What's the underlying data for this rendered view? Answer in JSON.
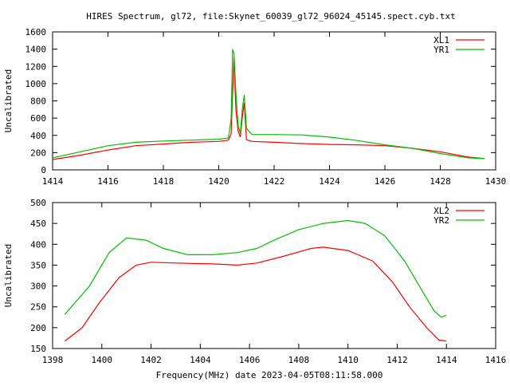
{
  "chart_data": [
    {
      "type": "line",
      "title": "HIRES Spectrum, gl72, file:Skynet_60039_gl72_96024_45145.spect.cyb.txt",
      "xlabel": "",
      "ylabel": "Uncalibrated",
      "xlim": [
        1414,
        1430
      ],
      "ylim": [
        0,
        1600
      ],
      "xticks": [
        1414,
        1416,
        1418,
        1420,
        1422,
        1424,
        1426,
        1428,
        1430
      ],
      "yticks": [
        0,
        200,
        400,
        600,
        800,
        1000,
        1200,
        1400,
        1600
      ],
      "legend": "top-right",
      "series": [
        {
          "name": "XL1",
          "color": "#ff0000",
          "x": [
            1414,
            1415,
            1416,
            1417,
            1418,
            1419,
            1420,
            1420.35,
            1420.45,
            1420.5,
            1420.55,
            1420.62,
            1420.7,
            1420.78,
            1420.85,
            1420.92,
            1421.0,
            1421.2,
            1422,
            1423,
            1424,
            1425,
            1426,
            1427,
            1428,
            1429,
            1429.6
          ],
          "y": [
            120,
            170,
            230,
            280,
            300,
            320,
            330,
            345,
            420,
            900,
            1300,
            700,
            450,
            380,
            600,
            780,
            350,
            330,
            320,
            305,
            295,
            290,
            280,
            250,
            210,
            150,
            130
          ]
        },
        {
          "name": "YR1",
          "color": "#00c000",
          "x": [
            1414,
            1415,
            1416,
            1417,
            1418,
            1419,
            1420,
            1420.35,
            1420.45,
            1420.5,
            1420.55,
            1420.62,
            1420.7,
            1420.78,
            1420.85,
            1420.92,
            1421.0,
            1421.2,
            1422,
            1423,
            1424,
            1425,
            1426,
            1427,
            1428,
            1429,
            1429.6
          ],
          "y": [
            140,
            210,
            280,
            320,
            335,
            345,
            355,
            370,
            600,
            1400,
            1350,
            900,
            520,
            420,
            700,
            870,
            480,
            410,
            410,
            405,
            380,
            340,
            290,
            250,
            190,
            140,
            130
          ]
        }
      ]
    },
    {
      "type": "line",
      "title": "",
      "xlabel": "Frequency(MHz) date 2023-04-05T08:11:58.000",
      "ylabel": "Uncalibrated",
      "xlim": [
        1398,
        1416
      ],
      "ylim": [
        150,
        500
      ],
      "xticks": [
        1398,
        1400,
        1402,
        1404,
        1406,
        1408,
        1410,
        1412,
        1414,
        1416
      ],
      "yticks": [
        150,
        200,
        250,
        300,
        350,
        400,
        450,
        500
      ],
      "legend": "top-right",
      "series": [
        {
          "name": "XL2",
          "color": "#ff0000",
          "x": [
            1398.5,
            1399.2,
            1399.9,
            1400.7,
            1401.4,
            1402,
            1403,
            1404.5,
            1405.5,
            1406.3,
            1407.3,
            1408.5,
            1409,
            1410,
            1411,
            1411.8,
            1412.5,
            1413.2,
            1413.7,
            1414
          ],
          "y": [
            168,
            200,
            260,
            320,
            350,
            357,
            355,
            353,
            350,
            355,
            370,
            390,
            393,
            385,
            360,
            310,
            250,
            200,
            170,
            168
          ]
        },
        {
          "name": "YR2",
          "color": "#00c000",
          "x": [
            1398.5,
            1399.5,
            1400.3,
            1401,
            1401.8,
            1402.5,
            1403.5,
            1404.5,
            1405.5,
            1406.3,
            1407,
            1408,
            1409,
            1410,
            1410.7,
            1411.5,
            1412.3,
            1413,
            1413.5,
            1413.8,
            1414
          ],
          "y": [
            232,
            300,
            380,
            415,
            410,
            390,
            375,
            375,
            380,
            390,
            410,
            435,
            450,
            457,
            450,
            420,
            360,
            290,
            240,
            225,
            230
          ]
        }
      ]
    }
  ]
}
